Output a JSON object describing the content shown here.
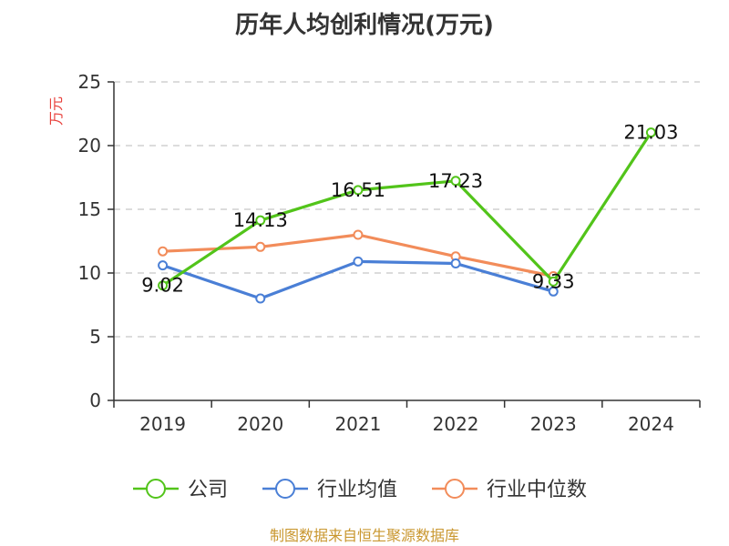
{
  "chart_data": {
    "type": "line",
    "title": "历年人均创利情况(万元)",
    "ylabel": "万元",
    "xlabel": "",
    "categories": [
      "2019",
      "2020",
      "2021",
      "2022",
      "2023",
      "2024"
    ],
    "ylim": [
      0,
      25
    ],
    "yticks": [
      0,
      5,
      10,
      15,
      20,
      25
    ],
    "grid": true,
    "legend_position": "bottom",
    "series": [
      {
        "name": "公司",
        "color": "#52c41a",
        "values": [
          9.02,
          14.13,
          16.51,
          17.23,
          9.33,
          21.03
        ],
        "data_labels": [
          "9.02",
          "14.13",
          "16.51",
          "17.23",
          "9.33",
          "21.03"
        ]
      },
      {
        "name": "行业均值",
        "color": "#4a7fd6",
        "values": [
          10.6,
          8.0,
          10.9,
          10.75,
          8.55,
          null
        ]
      },
      {
        "name": "行业中位数",
        "color": "#f28c5a",
        "values": [
          11.7,
          12.05,
          13.0,
          11.3,
          9.75,
          null
        ]
      }
    ]
  },
  "footer": {
    "source": "制图数据来自恒生聚源数据库"
  }
}
